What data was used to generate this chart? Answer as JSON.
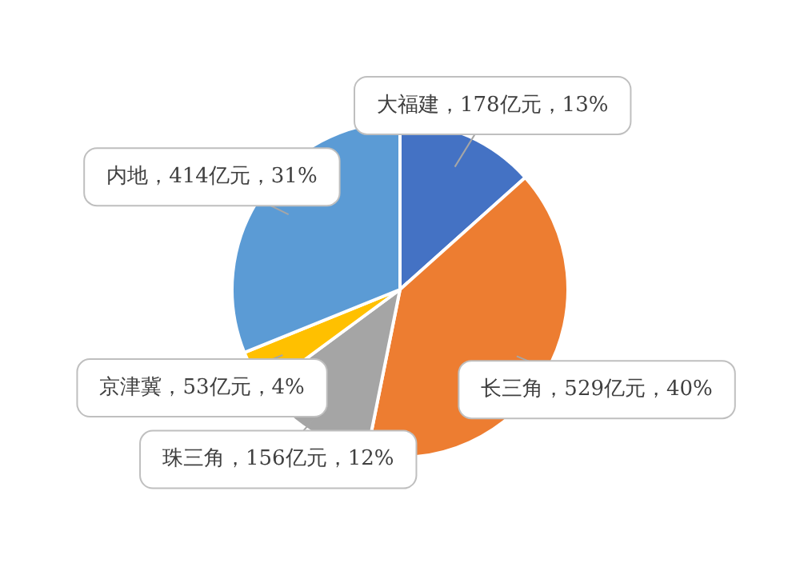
{
  "chart_data": {
    "type": "pie",
    "categories": [
      "大福建",
      "长三角",
      "珠三角",
      "京津冀",
      "内地"
    ],
    "values": [
      178,
      529,
      156,
      53,
      414
    ],
    "colors": [
      "#4472c4",
      "#ed7d31",
      "#a5a5a5",
      "#ffc000",
      "#5b9bd5"
    ],
    "value_labels": [
      "178亿元，13%",
      "529亿元，40%",
      "156亿元，12%",
      "53亿元，4%",
      "414亿元，31%"
    ],
    "legend": false
  }
}
